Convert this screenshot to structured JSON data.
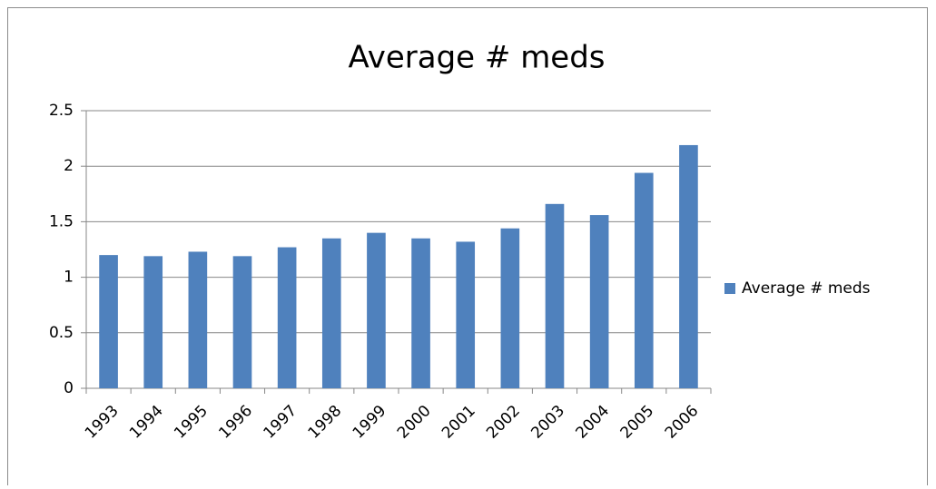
{
  "chart_data": {
    "type": "bar",
    "title": "Average # meds",
    "categories": [
      "1993",
      "1994",
      "1995",
      "1996",
      "1997",
      "1998",
      "1999",
      "2000",
      "2001",
      "2002",
      "2003",
      "2004",
      "2005",
      "2006"
    ],
    "series": [
      {
        "name": "Average # meds",
        "color": "#4f81bd",
        "values": [
          1.2,
          1.19,
          1.23,
          1.19,
          1.27,
          1.35,
          1.4,
          1.35,
          1.32,
          1.44,
          1.66,
          1.56,
          1.94,
          2.19
        ]
      }
    ],
    "ylim": [
      0,
      2.5
    ],
    "yticks": [
      0,
      0.5,
      1,
      1.5,
      2,
      2.5
    ],
    "grid": true,
    "legend": "right"
  }
}
